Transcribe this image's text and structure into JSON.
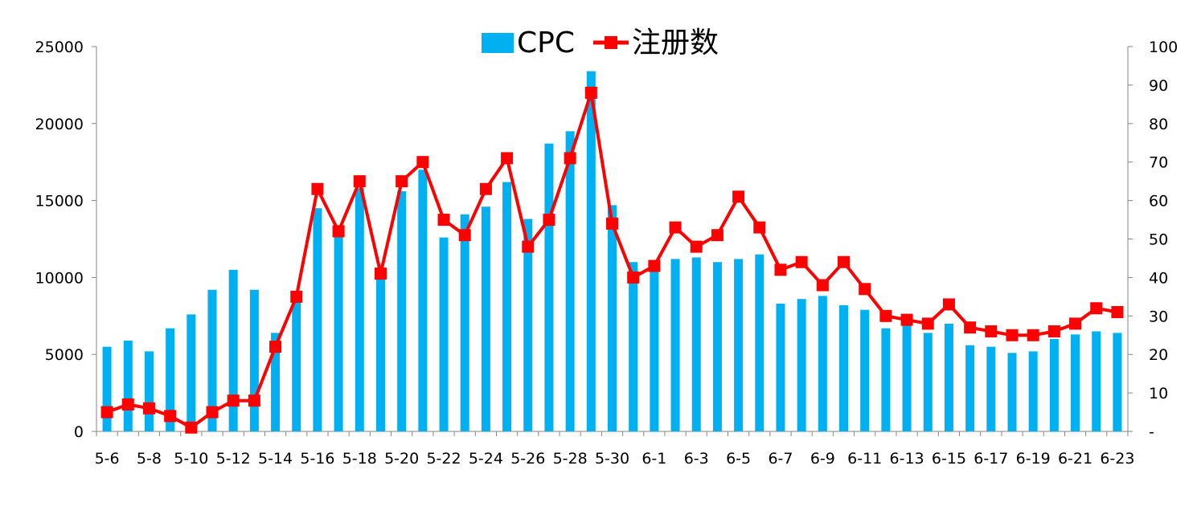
{
  "chart_data": {
    "type": "bar+line",
    "title": "",
    "xlabel": "",
    "ylabel": "",
    "y2label": "",
    "categories": [
      "5-6",
      "5-7",
      "5-8",
      "5-9",
      "5-10",
      "5-11",
      "5-12",
      "5-13",
      "5-14",
      "5-15",
      "5-16",
      "5-17",
      "5-18",
      "5-19",
      "5-20",
      "5-21",
      "5-22",
      "5-23",
      "5-24",
      "5-25",
      "5-26",
      "5-27",
      "5-28",
      "5-29",
      "5-30",
      "5-31",
      "6-1",
      "6-2",
      "6-3",
      "6-4",
      "6-5",
      "6-6",
      "6-7",
      "6-8",
      "6-9",
      "6-10",
      "6-11",
      "6-12",
      "6-13",
      "6-14",
      "6-15",
      "6-16",
      "6-17",
      "6-18",
      "6-19",
      "6-20",
      "6-21",
      "6-22",
      "6-23"
    ],
    "tick_labels": [
      "5-6",
      "5-8",
      "5-10",
      "5-12",
      "5-14",
      "5-16",
      "5-18",
      "5-20",
      "5-22",
      "5-24",
      "5-26",
      "5-28",
      "5-30",
      "6-1",
      "6-3",
      "6-5",
      "6-7",
      "6-9",
      "6-11",
      "6-13",
      "6-15",
      "6-17",
      "6-19",
      "6-21",
      "6-23"
    ],
    "ylim": [
      0,
      25000
    ],
    "y_ticks": [
      "0",
      "5000",
      "10000",
      "15000",
      "20000",
      "25000"
    ],
    "y2lim": [
      0,
      100
    ],
    "y2_ticks": [
      "-",
      "10",
      "20",
      "30",
      "40",
      "50",
      "60",
      "70",
      "80",
      "90",
      "100"
    ],
    "legend_position": "top-center",
    "grid": false,
    "series": [
      {
        "name": "CPC",
        "type": "bar",
        "axis": "left",
        "color": "#00B0F0",
        "values": [
          5500,
          5900,
          5200,
          6700,
          7600,
          9200,
          10500,
          9200,
          6400,
          8600,
          14500,
          12800,
          15800,
          10200,
          15600,
          17000,
          12600,
          14100,
          14600,
          16200,
          13800,
          18700,
          19500,
          23400,
          14700,
          11000,
          10500,
          11200,
          11300,
          11000,
          11200,
          11500,
          8300,
          8600,
          8800,
          8200,
          7900,
          6700,
          7000,
          6400,
          7000,
          5600,
          5500,
          5100,
          5200,
          6000,
          6300,
          6500,
          6400
        ]
      },
      {
        "name": "注册数",
        "type": "line",
        "axis": "right",
        "color": "#FF0000",
        "values": [
          5,
          7,
          6,
          4,
          1,
          5,
          8,
          8,
          22,
          35,
          63,
          52,
          65,
          41,
          65,
          70,
          55,
          51,
          63,
          71,
          48,
          55,
          71,
          88,
          54,
          40,
          43,
          53,
          48,
          51,
          61,
          53,
          42,
          44,
          38,
          44,
          37,
          30,
          29,
          28,
          33,
          27,
          26,
          25,
          25,
          26,
          28,
          32,
          31
        ]
      }
    ]
  }
}
